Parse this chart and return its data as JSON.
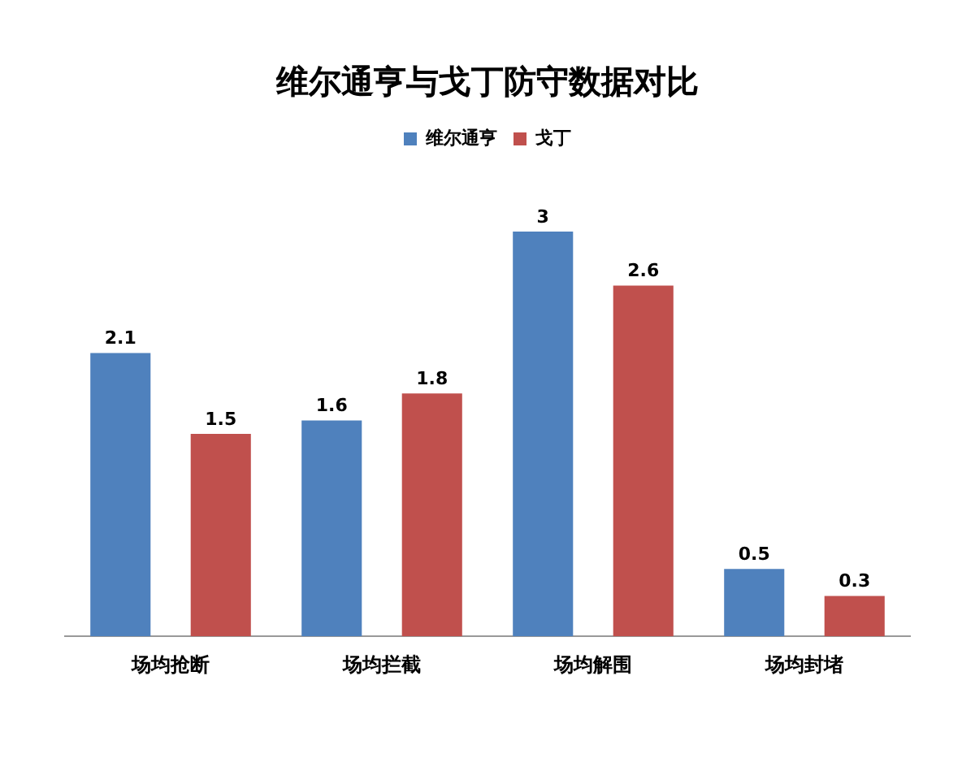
{
  "chart_data": {
    "type": "bar",
    "title": "维尔通亨与戈丁防守数据对比",
    "categories": [
      "场均抢断",
      "场均拦截",
      "场均解围",
      "场均封堵"
    ],
    "series": [
      {
        "name": "维尔通亨",
        "color": "#4f81bd",
        "values": [
          2.1,
          1.6,
          3,
          0.5
        ]
      },
      {
        "name": "戈丁",
        "color": "#c0504d",
        "values": [
          1.5,
          1.8,
          2.6,
          0.3
        ]
      }
    ],
    "data_labels": true,
    "legend": "top",
    "grid": false
  }
}
